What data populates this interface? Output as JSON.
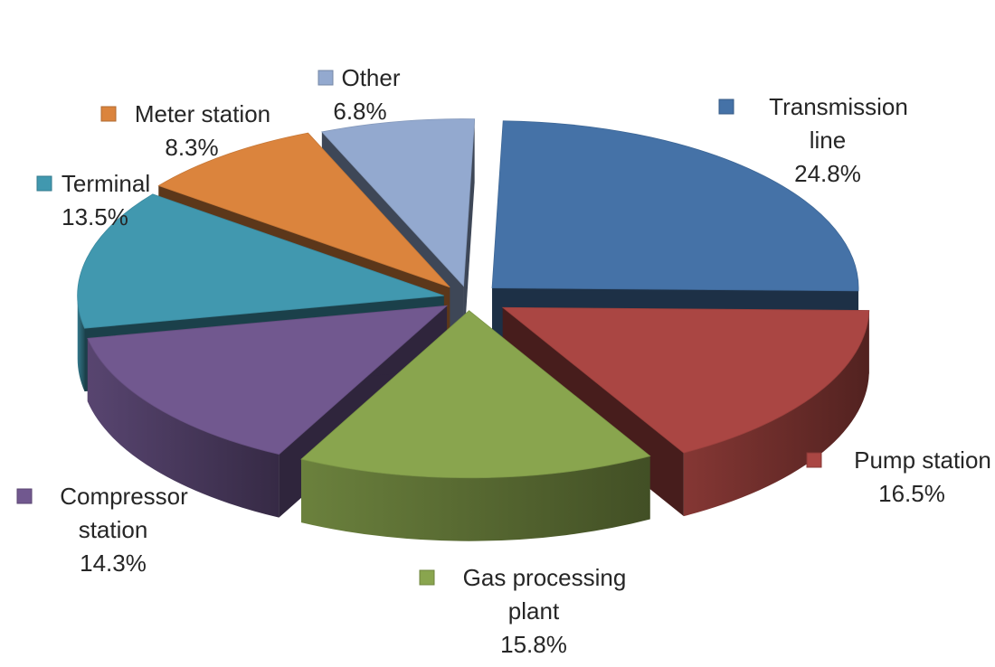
{
  "chart_data": {
    "type": "pie",
    "style": "3d-exploded",
    "categories": [
      "Transmission line",
      "Pump station",
      "Gas processing plant",
      "Compressor station",
      "Terminal",
      "Meter station",
      "Other"
    ],
    "values": [
      24.8,
      16.5,
      15.8,
      14.3,
      13.5,
      8.3,
      6.8
    ],
    "unit": "%",
    "colors": [
      "#4572A7",
      "#AA4643",
      "#89A54E",
      "#71588F",
      "#4198AF",
      "#DB843D",
      "#93A9CF"
    ],
    "labels": [
      {
        "name_lines": [
          "Transmission",
          "line"
        ],
        "percent": "24.8%"
      },
      {
        "name_lines": [
          "Pump station"
        ],
        "percent": "16.5%"
      },
      {
        "name_lines": [
          "Gas processing",
          "plant"
        ],
        "percent": "15.8%"
      },
      {
        "name_lines": [
          "Compressor",
          "station"
        ],
        "percent": "14.3%"
      },
      {
        "name_lines": [
          "Terminal"
        ],
        "percent": "13.5%"
      },
      {
        "name_lines": [
          "Meter station"
        ],
        "percent": "8.3%"
      },
      {
        "name_lines": [
          "Other"
        ],
        "percent": "6.8%"
      }
    ],
    "title": "",
    "legend": "none"
  }
}
